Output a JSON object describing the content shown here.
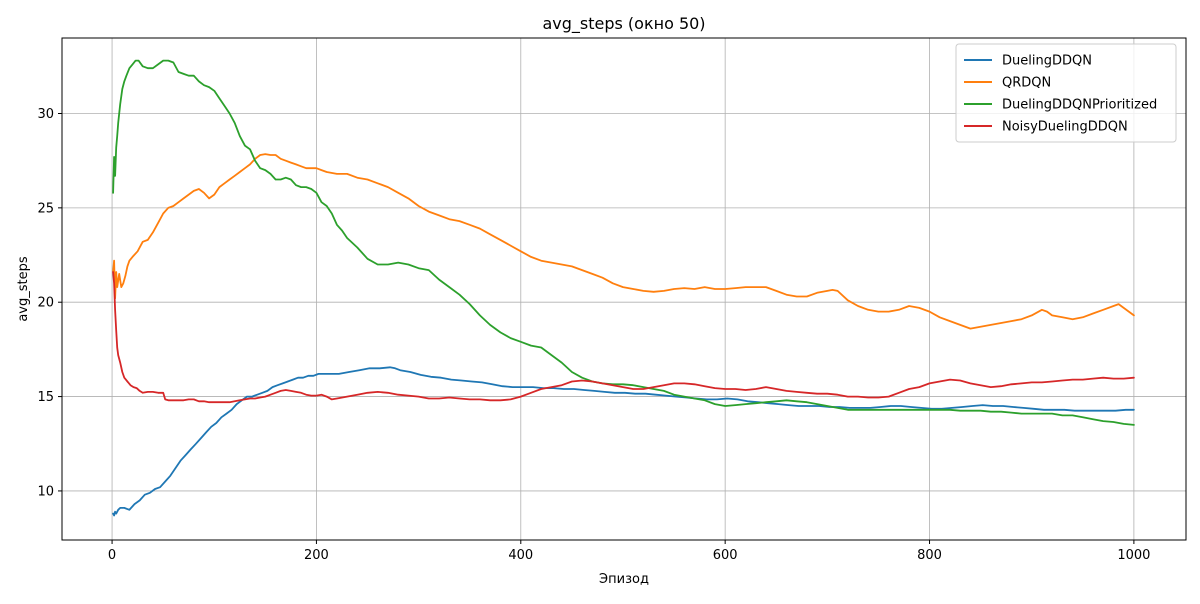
{
  "chart_data": {
    "type": "line",
    "title": "avg_steps (окно 50)",
    "xlabel": "Эпизод",
    "ylabel": "avg_steps",
    "xlim": [
      -49,
      1051
    ],
    "ylim": [
      7.4,
      34.0
    ],
    "xticks": [
      0,
      200,
      400,
      600,
      800,
      1000
    ],
    "yticks": [
      10,
      15,
      20,
      25,
      30
    ],
    "grid": true,
    "legend_position": "top-right",
    "series": [
      {
        "name": "DuelingDDQN",
        "color": "#1f77b4",
        "x": [
          1,
          2,
          3,
          4,
          6,
          8,
          12,
          17,
          22,
          27,
          32,
          37,
          42,
          47,
          52,
          57,
          62,
          67,
          72,
          77,
          82,
          87,
          92,
          97,
          102,
          107,
          112,
          117,
          122,
          127,
          132,
          137,
          142,
          147,
          152,
          157,
          162,
          167,
          172,
          177,
          182,
          187,
          192,
          197,
          202,
          212,
          222,
          232,
          242,
          252,
          262,
          272,
          277,
          282,
          292,
          302,
          312,
          322,
          332,
          342,
          352,
          362,
          372,
          382,
          392,
          402,
          412,
          422,
          432,
          442,
          452,
          462,
          472,
          482,
          492,
          502,
          512,
          522,
          532,
          542,
          552,
          562,
          572,
          582,
          592,
          602,
          612,
          622,
          632,
          642,
          652,
          662,
          672,
          682,
          692,
          702,
          712,
          722,
          732,
          742,
          752,
          762,
          772,
          782,
          792,
          802,
          812,
          822,
          832,
          842,
          852,
          862,
          872,
          882,
          892,
          902,
          912,
          922,
          932,
          942,
          952,
          962,
          972,
          982,
          992,
          1000
        ],
        "y": [
          8.8,
          8.7,
          8.9,
          8.8,
          9.0,
          9.1,
          9.1,
          9.0,
          9.3,
          9.5,
          9.8,
          9.9,
          10.1,
          10.2,
          10.5,
          10.8,
          11.2,
          11.6,
          11.9,
          12.2,
          12.5,
          12.8,
          13.1,
          13.4,
          13.6,
          13.9,
          14.1,
          14.3,
          14.6,
          14.8,
          15.0,
          15.0,
          15.1,
          15.2,
          15.3,
          15.5,
          15.6,
          15.7,
          15.8,
          15.9,
          16.0,
          16.0,
          16.1,
          16.1,
          16.2,
          16.2,
          16.2,
          16.3,
          16.4,
          16.5,
          16.5,
          16.55,
          16.5,
          16.4,
          16.3,
          16.15,
          16.05,
          16.0,
          15.9,
          15.85,
          15.8,
          15.75,
          15.65,
          15.55,
          15.5,
          15.5,
          15.5,
          15.45,
          15.45,
          15.4,
          15.4,
          15.35,
          15.3,
          15.25,
          15.2,
          15.2,
          15.15,
          15.15,
          15.1,
          15.05,
          15.0,
          14.95,
          14.9,
          14.85,
          14.85,
          14.9,
          14.85,
          14.75,
          14.7,
          14.65,
          14.6,
          14.55,
          14.5,
          14.5,
          14.5,
          14.45,
          14.45,
          14.4,
          14.4,
          14.4,
          14.45,
          14.5,
          14.5,
          14.45,
          14.4,
          14.35,
          14.35,
          14.4,
          14.45,
          14.5,
          14.55,
          14.5,
          14.5,
          14.45,
          14.4,
          14.35,
          14.3,
          14.3,
          14.3,
          14.25,
          14.25,
          14.25,
          14.25,
          14.25,
          14.3,
          14.3
        ]
      },
      {
        "name": "QRDQN",
        "color": "#ff7f0e",
        "x": [
          1,
          2,
          3,
          4,
          5,
          7,
          9,
          11,
          13,
          15,
          17,
          20,
          25,
          30,
          35,
          40,
          45,
          50,
          55,
          60,
          65,
          70,
          75,
          80,
          85,
          90,
          95,
          100,
          105,
          110,
          115,
          120,
          125,
          130,
          135,
          140,
          145,
          150,
          155,
          160,
          165,
          170,
          175,
          180,
          185,
          190,
          195,
          200,
          205,
          210,
          220,
          230,
          240,
          250,
          260,
          270,
          280,
          290,
          300,
          310,
          320,
          330,
          340,
          350,
          360,
          370,
          380,
          390,
          400,
          410,
          420,
          430,
          440,
          450,
          460,
          470,
          480,
          490,
          500,
          510,
          520,
          530,
          540,
          550,
          560,
          570,
          580,
          590,
          600,
          610,
          620,
          630,
          640,
          650,
          660,
          670,
          680,
          690,
          700,
          705,
          710,
          720,
          730,
          740,
          750,
          760,
          770,
          780,
          790,
          800,
          810,
          820,
          830,
          840,
          850,
          860,
          870,
          880,
          890,
          900,
          910,
          915,
          920,
          930,
          940,
          950,
          960,
          970,
          980,
          985,
          990,
          995,
          1000
        ],
        "y": [
          21.6,
          22.2,
          20.2,
          21.6,
          20.8,
          21.5,
          20.8,
          21.0,
          21.4,
          21.9,
          22.2,
          22.4,
          22.7,
          23.2,
          23.3,
          23.7,
          24.2,
          24.7,
          25.0,
          25.1,
          25.3,
          25.5,
          25.7,
          25.9,
          26.0,
          25.8,
          25.5,
          25.7,
          26.1,
          26.3,
          26.5,
          26.7,
          26.9,
          27.1,
          27.3,
          27.6,
          27.8,
          27.85,
          27.8,
          27.8,
          27.6,
          27.5,
          27.4,
          27.3,
          27.2,
          27.1,
          27.1,
          27.1,
          27.0,
          26.9,
          26.8,
          26.8,
          26.6,
          26.5,
          26.3,
          26.1,
          25.8,
          25.5,
          25.1,
          24.8,
          24.6,
          24.4,
          24.3,
          24.1,
          23.9,
          23.6,
          23.3,
          23.0,
          22.7,
          22.4,
          22.2,
          22.1,
          22.0,
          21.9,
          21.7,
          21.5,
          21.3,
          21.0,
          20.8,
          20.7,
          20.6,
          20.55,
          20.6,
          20.7,
          20.75,
          20.7,
          20.8,
          20.7,
          20.7,
          20.75,
          20.8,
          20.8,
          20.8,
          20.6,
          20.4,
          20.3,
          20.3,
          20.5,
          20.6,
          20.65,
          20.6,
          20.1,
          19.8,
          19.6,
          19.5,
          19.5,
          19.6,
          19.8,
          19.7,
          19.5,
          19.2,
          19.0,
          18.8,
          18.6,
          18.7,
          18.8,
          18.9,
          19.0,
          19.1,
          19.3,
          19.6,
          19.5,
          19.3,
          19.2,
          19.1,
          19.2,
          19.4,
          19.6,
          19.8,
          19.9,
          19.7,
          19.5,
          19.3
        ]
      },
      {
        "name": "DuelingDDQNPrioritized",
        "color": "#2ca02c",
        "x": [
          1,
          2,
          3,
          4,
          5,
          6,
          8,
          10,
          12,
          14,
          17,
          20,
          23,
          26,
          30,
          35,
          40,
          45,
          50,
          55,
          60,
          65,
          70,
          75,
          80,
          85,
          90,
          95,
          100,
          105,
          110,
          115,
          120,
          125,
          130,
          135,
          140,
          145,
          150,
          155,
          160,
          165,
          170,
          175,
          180,
          185,
          190,
          195,
          200,
          205,
          210,
          215,
          220,
          225,
          230,
          240,
          250,
          260,
          270,
          280,
          290,
          300,
          310,
          320,
          330,
          340,
          350,
          360,
          370,
          380,
          390,
          400,
          410,
          420,
          430,
          440,
          450,
          460,
          470,
          480,
          490,
          500,
          510,
          520,
          530,
          540,
          550,
          560,
          570,
          580,
          590,
          600,
          610,
          620,
          630,
          640,
          650,
          660,
          670,
          680,
          690,
          700,
          710,
          720,
          730,
          740,
          750,
          760,
          770,
          780,
          790,
          800,
          810,
          820,
          830,
          840,
          850,
          860,
          870,
          880,
          890,
          900,
          910,
          920,
          930,
          940,
          950,
          960,
          970,
          980,
          990,
          1000
        ],
        "y": [
          25.8,
          27.7,
          26.7,
          28.2,
          28.8,
          29.5,
          30.5,
          31.3,
          31.7,
          32.0,
          32.4,
          32.6,
          32.8,
          32.8,
          32.5,
          32.4,
          32.4,
          32.6,
          32.8,
          32.8,
          32.7,
          32.2,
          32.1,
          32.0,
          32.0,
          31.7,
          31.5,
          31.4,
          31.2,
          30.8,
          30.4,
          30.0,
          29.5,
          28.8,
          28.3,
          28.1,
          27.5,
          27.1,
          27.0,
          26.8,
          26.5,
          26.5,
          26.6,
          26.5,
          26.2,
          26.1,
          26.1,
          26.0,
          25.8,
          25.3,
          25.1,
          24.7,
          24.1,
          23.8,
          23.4,
          22.9,
          22.3,
          22.0,
          22.0,
          22.1,
          22.0,
          21.8,
          21.7,
          21.2,
          20.8,
          20.4,
          19.9,
          19.3,
          18.8,
          18.4,
          18.1,
          17.9,
          17.7,
          17.6,
          17.2,
          16.8,
          16.3,
          16.0,
          15.8,
          15.7,
          15.65,
          15.65,
          15.6,
          15.5,
          15.4,
          15.3,
          15.1,
          15.0,
          14.9,
          14.8,
          14.6,
          14.5,
          14.55,
          14.6,
          14.65,
          14.7,
          14.75,
          14.8,
          14.75,
          14.7,
          14.6,
          14.5,
          14.4,
          14.3,
          14.3,
          14.3,
          14.3,
          14.3,
          14.3,
          14.3,
          14.3,
          14.3,
          14.3,
          14.3,
          14.25,
          14.25,
          14.25,
          14.2,
          14.2,
          14.15,
          14.1,
          14.1,
          14.1,
          14.1,
          14.0,
          14.0,
          13.9,
          13.8,
          13.7,
          13.65,
          13.55,
          13.5
        ]
      },
      {
        "name": "NoisyDuelingDDQN",
        "color": "#d62728",
        "x": [
          1,
          2,
          3,
          4,
          5,
          6,
          8,
          10,
          12,
          15,
          18,
          21,
          24,
          27,
          30,
          35,
          40,
          45,
          50,
          52,
          55,
          60,
          65,
          70,
          75,
          80,
          85,
          90,
          95,
          100,
          105,
          110,
          115,
          120,
          125,
          130,
          135,
          140,
          145,
          150,
          155,
          160,
          165,
          170,
          175,
          180,
          185,
          190,
          195,
          200,
          205,
          210,
          215,
          220,
          230,
          240,
          250,
          260,
          270,
          280,
          290,
          300,
          310,
          320,
          330,
          340,
          350,
          360,
          370,
          380,
          390,
          400,
          410,
          420,
          430,
          440,
          450,
          460,
          470,
          480,
          490,
          500,
          510,
          520,
          530,
          540,
          550,
          560,
          570,
          580,
          590,
          600,
          610,
          620,
          630,
          640,
          650,
          660,
          670,
          680,
          690,
          700,
          710,
          720,
          730,
          740,
          750,
          760,
          770,
          780,
          790,
          800,
          810,
          820,
          830,
          840,
          850,
          860,
          870,
          880,
          890,
          900,
          910,
          920,
          930,
          940,
          950,
          960,
          970,
          980,
          990,
          1000
        ],
        "y": [
          21.6,
          21.0,
          19.6,
          18.5,
          17.6,
          17.2,
          16.8,
          16.3,
          16.0,
          15.8,
          15.6,
          15.5,
          15.45,
          15.3,
          15.2,
          15.25,
          15.25,
          15.2,
          15.2,
          14.85,
          14.8,
          14.8,
          14.8,
          14.8,
          14.85,
          14.85,
          14.75,
          14.75,
          14.7,
          14.7,
          14.7,
          14.7,
          14.7,
          14.75,
          14.8,
          14.85,
          14.9,
          14.9,
          14.95,
          15.0,
          15.1,
          15.2,
          15.3,
          15.35,
          15.3,
          15.25,
          15.2,
          15.1,
          15.05,
          15.05,
          15.1,
          15.0,
          14.85,
          14.9,
          15.0,
          15.1,
          15.2,
          15.25,
          15.2,
          15.1,
          15.05,
          15.0,
          14.9,
          14.9,
          14.95,
          14.9,
          14.85,
          14.85,
          14.8,
          14.8,
          14.85,
          15.0,
          15.2,
          15.4,
          15.5,
          15.6,
          15.8,
          15.85,
          15.8,
          15.7,
          15.6,
          15.5,
          15.4,
          15.4,
          15.5,
          15.6,
          15.7,
          15.7,
          15.65,
          15.55,
          15.45,
          15.4,
          15.4,
          15.35,
          15.4,
          15.5,
          15.4,
          15.3,
          15.25,
          15.2,
          15.15,
          15.15,
          15.1,
          15.0,
          15.0,
          14.95,
          14.95,
          15.0,
          15.2,
          15.4,
          15.5,
          15.7,
          15.8,
          15.9,
          15.85,
          15.7,
          15.6,
          15.5,
          15.55,
          15.65,
          15.7,
          15.75,
          15.75,
          15.8,
          15.85,
          15.9,
          15.9,
          15.95,
          16.0,
          15.95,
          15.95,
          16.0
        ]
      }
    ]
  }
}
